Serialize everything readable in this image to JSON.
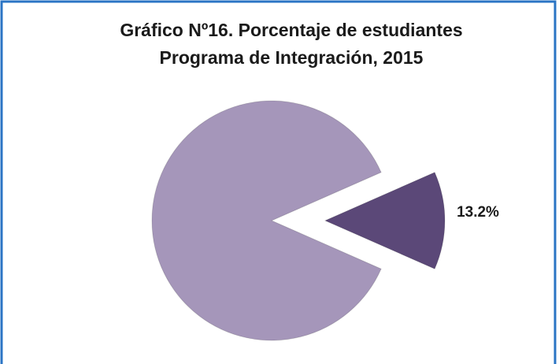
{
  "chart_data": {
    "type": "pie",
    "title": "Gráfico Nº16. Porcentaje de estudiantes",
    "subtitle": "Programa de Integración,  2015",
    "values": [
      86.8,
      13.2
    ],
    "value_labels": [
      null,
      "13.2%"
    ],
    "colors": [
      "#a596ba",
      "#5b4878"
    ],
    "exploded": [
      false,
      true
    ]
  }
}
